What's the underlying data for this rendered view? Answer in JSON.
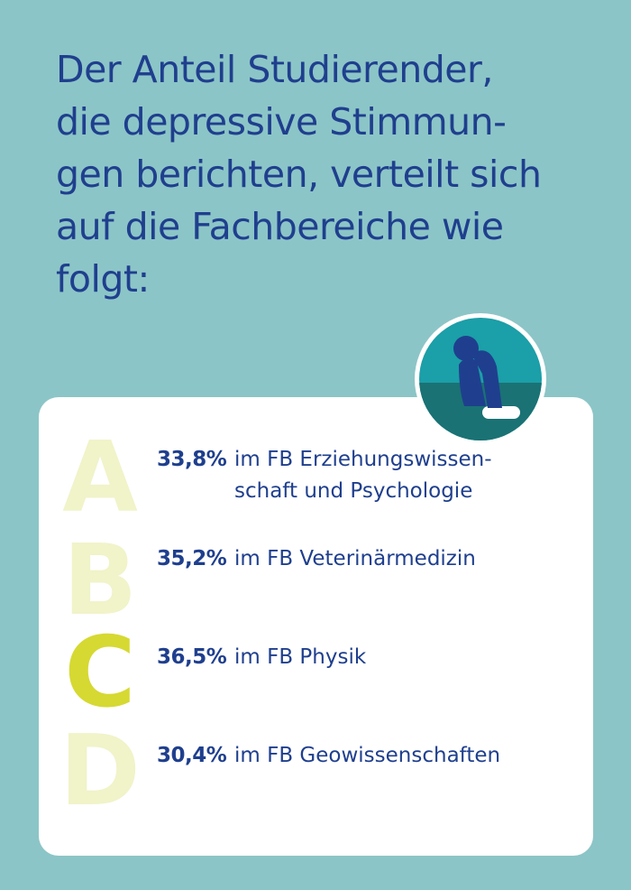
{
  "headline": {
    "lines": [
      "Der Anteil Studierender,",
      "die depressive Stimmun-",
      "gen berichten, verteilt sich",
      "auf die Fachbereiche wie",
      "folgt:"
    ]
  },
  "icon": {
    "name": "sad-person-icon"
  },
  "items": [
    {
      "letter": "A",
      "percent": "33,8%",
      "label": "im FB Erziehungswissen-",
      "label_cont": "schaft und Psychologie"
    },
    {
      "letter": "B",
      "percent": "35,2%",
      "label": "im FB Veterinärmedizin"
    },
    {
      "letter": "C",
      "percent": "36,5%",
      "label": "im FB Physik"
    },
    {
      "letter": "D",
      "percent": "30,4%",
      "label": "im FB Geowissenschaften"
    }
  ],
  "colors": {
    "background": "#8cc5c7",
    "text": "#1f3f8e",
    "letter_faded": "#f1f3c9",
    "letter_highlight": "#d6d931",
    "icon_teal": "#1b9fa8",
    "icon_dark": "#1a7274"
  }
}
